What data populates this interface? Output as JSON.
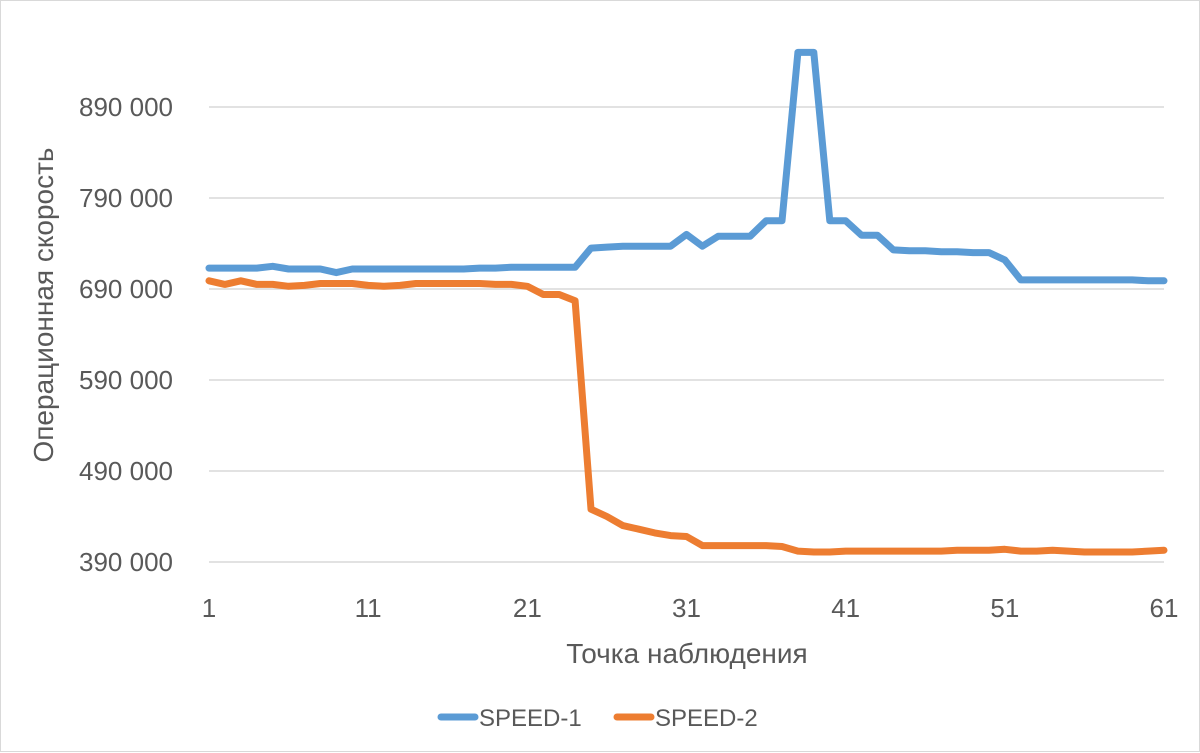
{
  "chart_data": {
    "type": "line",
    "title": "",
    "xlabel": "Точка наблюдения",
    "ylabel": "Операционная скорость",
    "ylim": [
      370000,
      950000
    ],
    "y_ticks": [
      390000,
      490000,
      590000,
      690000,
      790000,
      890000
    ],
    "y_tick_labels": [
      "390 000",
      "490 000",
      "590 000",
      "690 000",
      "790 000",
      "890 000"
    ],
    "x_ticks": [
      1,
      11,
      21,
      31,
      41,
      51,
      61
    ],
    "x_tick_labels": [
      "1",
      "11",
      "21",
      "31",
      "41",
      "51",
      "61"
    ],
    "xlim": [
      1,
      61
    ],
    "grid": "horizontal",
    "legend_position": "bottom",
    "x": [
      1,
      2,
      3,
      4,
      5,
      6,
      7,
      8,
      9,
      10,
      11,
      12,
      13,
      14,
      15,
      16,
      17,
      18,
      19,
      20,
      21,
      22,
      23,
      24,
      25,
      26,
      27,
      28,
      29,
      30,
      31,
      32,
      33,
      34,
      35,
      36,
      37,
      38,
      39,
      40,
      41,
      42,
      43,
      44,
      45,
      46,
      47,
      48,
      49,
      50,
      51,
      52,
      53,
      54,
      55,
      56,
      57,
      58,
      59,
      60,
      61
    ],
    "series": [
      {
        "name": "SPEED-1",
        "color": "#5b9bd5",
        "values": [
          713000,
          713000,
          713000,
          713000,
          715000,
          712000,
          712000,
          712000,
          708000,
          712000,
          712000,
          712000,
          712000,
          712000,
          712000,
          712000,
          712000,
          713000,
          713000,
          714000,
          714000,
          714000,
          714000,
          714000,
          735000,
          736000,
          737000,
          737000,
          737000,
          737000,
          750000,
          737000,
          748000,
          748000,
          748000,
          765000,
          765000,
          950000,
          950000,
          765000,
          765000,
          749000,
          749000,
          733000,
          732000,
          732000,
          731000,
          731000,
          730000,
          730000,
          722000,
          700000,
          700000,
          700000,
          700000,
          700000,
          700000,
          700000,
          700000,
          699000,
          699000
        ]
      },
      {
        "name": "SPEED-2",
        "color": "#ed7d31",
        "values": [
          699000,
          695000,
          699000,
          695000,
          695000,
          693000,
          694000,
          696000,
          696000,
          696000,
          694000,
          693000,
          694000,
          696000,
          696000,
          696000,
          696000,
          696000,
          695000,
          695000,
          693000,
          684000,
          684000,
          677000,
          448000,
          440000,
          430000,
          426000,
          422000,
          419000,
          418000,
          408000,
          408000,
          408000,
          408000,
          408000,
          407000,
          402000,
          401000,
          401000,
          402000,
          402000,
          402000,
          402000,
          402000,
          402000,
          402000,
          403000,
          403000,
          403000,
          404000,
          402000,
          402000,
          403000,
          402000,
          401000,
          401000,
          401000,
          401000,
          402000,
          403000
        ]
      }
    ]
  }
}
